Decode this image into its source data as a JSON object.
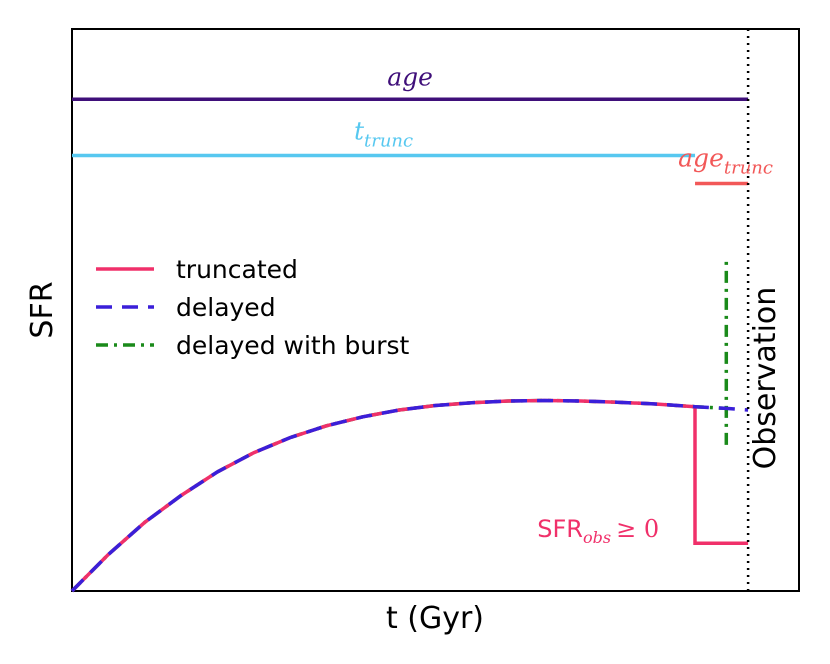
{
  "chart_data": {
    "type": "line",
    "title": "",
    "xlabel": "t (Gyr)",
    "ylabel": "SFR",
    "xlim": [
      0,
      1
    ],
    "ylim": [
      0,
      1
    ],
    "grid": false,
    "legend": {
      "placement": "center-left",
      "entries": [
        {
          "label": "truncated",
          "color": "#f0306a",
          "style": "solid"
        },
        {
          "label": "delayed",
          "color": "#3a1fd9",
          "style": "dashed"
        },
        {
          "label": "delayed with burst",
          "color": "#1a8a1a",
          "style": "dashdot"
        }
      ]
    },
    "series": [
      {
        "name": "delayed",
        "color": "#3a1fd9",
        "style": "dashed",
        "points": [
          [
            0,
            0
          ],
          [
            0.05,
            0.065
          ],
          [
            0.1,
            0.122
          ],
          [
            0.15,
            0.17
          ],
          [
            0.2,
            0.212
          ],
          [
            0.25,
            0.246
          ],
          [
            0.3,
            0.273
          ],
          [
            0.35,
            0.294
          ],
          [
            0.4,
            0.31
          ],
          [
            0.45,
            0.322
          ],
          [
            0.5,
            0.33
          ],
          [
            0.55,
            0.335
          ],
          [
            0.6,
            0.338
          ],
          [
            0.65,
            0.339
          ],
          [
            0.7,
            0.338
          ],
          [
            0.75,
            0.336
          ],
          [
            0.8,
            0.333
          ],
          [
            0.857,
            0.328
          ],
          [
            0.9,
            0.325
          ],
          [
            0.93,
            0.322
          ]
        ]
      },
      {
        "name": "truncated",
        "color": "#f0306a",
        "style": "solid",
        "points": [
          [
            0,
            0
          ],
          [
            0.05,
            0.065
          ],
          [
            0.1,
            0.122
          ],
          [
            0.15,
            0.17
          ],
          [
            0.2,
            0.212
          ],
          [
            0.25,
            0.246
          ],
          [
            0.3,
            0.273
          ],
          [
            0.35,
            0.294
          ],
          [
            0.4,
            0.31
          ],
          [
            0.45,
            0.322
          ],
          [
            0.5,
            0.33
          ],
          [
            0.55,
            0.335
          ],
          [
            0.6,
            0.338
          ],
          [
            0.65,
            0.339
          ],
          [
            0.7,
            0.338
          ],
          [
            0.75,
            0.336
          ],
          [
            0.8,
            0.333
          ],
          [
            0.857,
            0.328
          ],
          [
            0.857,
            0.085
          ],
          [
            0.93,
            0.085
          ]
        ]
      },
      {
        "name": "delayed with burst",
        "color": "#1a8a1a",
        "style": "dashdot",
        "points": [
          [
            0,
            0
          ],
          [
            0.05,
            0.065
          ],
          [
            0.1,
            0.122
          ],
          [
            0.15,
            0.17
          ],
          [
            0.2,
            0.212
          ],
          [
            0.25,
            0.246
          ],
          [
            0.3,
            0.273
          ],
          [
            0.35,
            0.294
          ],
          [
            0.4,
            0.31
          ],
          [
            0.45,
            0.322
          ],
          [
            0.5,
            0.33
          ],
          [
            0.55,
            0.335
          ],
          [
            0.6,
            0.338
          ],
          [
            0.65,
            0.339
          ],
          [
            0.7,
            0.338
          ],
          [
            0.75,
            0.336
          ],
          [
            0.8,
            0.333
          ],
          [
            0.857,
            0.328
          ],
          [
            0.9,
            0.325
          ]
        ],
        "burst": {
          "x": 0.9,
          "y_from": 0.26,
          "y_to": 0.595
        }
      }
    ],
    "spans": [
      {
        "label": "age",
        "color": "#3f0f7a",
        "x_from": 0,
        "x_to": 0.93,
        "y": 0.875
      },
      {
        "label": "t",
        "subscript": "trunc",
        "color": "#57c8f0",
        "x_from": 0,
        "x_to": 0.857,
        "y": 0.775
      },
      {
        "label": "age",
        "subscript": "trunc",
        "color": "#f25858",
        "x_from": 0.857,
        "x_to": 0.93,
        "y": 0.725
      }
    ],
    "observation": {
      "label": "Observation",
      "x": 0.93
    },
    "annotation": {
      "text": "SFR",
      "subscript": "obs",
      "relation": "≥ 0",
      "color": "#f0306a"
    }
  }
}
